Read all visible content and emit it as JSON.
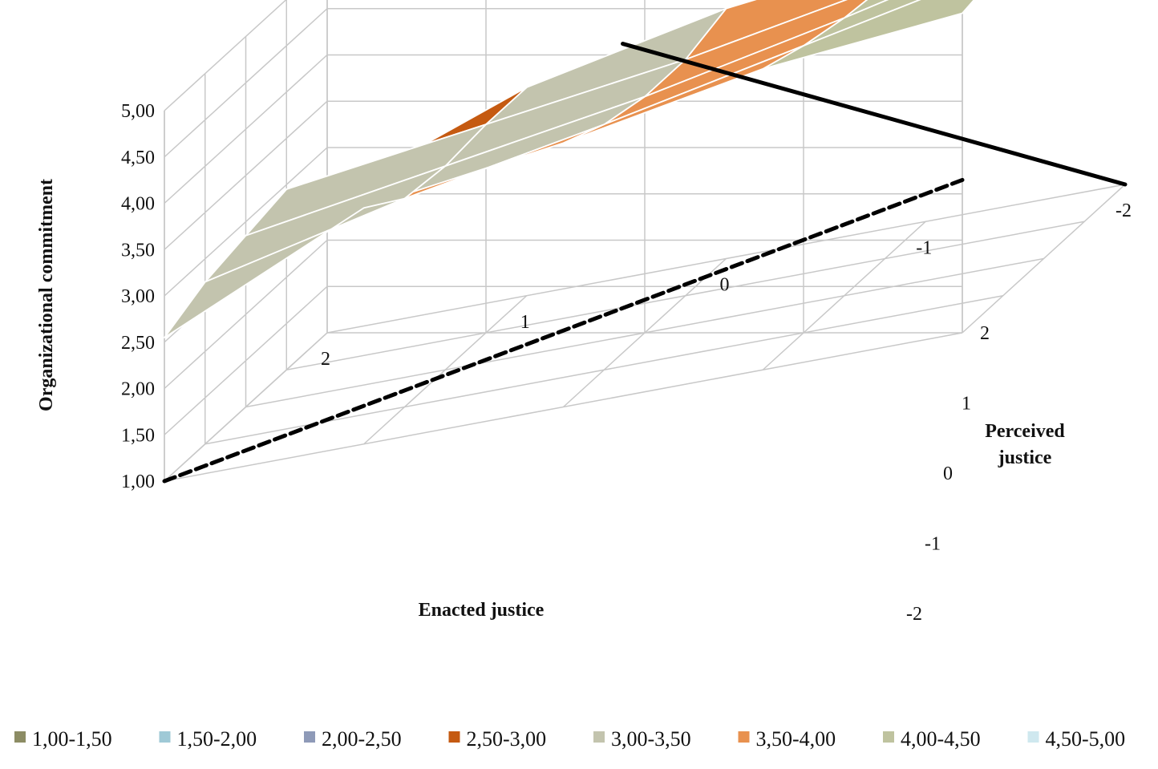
{
  "chart_data": {
    "type": "surface",
    "x_axis": {
      "label": "Enacted justice",
      "ticks": [
        "2",
        "1",
        "0",
        "-1",
        "-2"
      ],
      "values": [
        2,
        1,
        0,
        -1,
        -2
      ]
    },
    "y_axis": {
      "label_lines": [
        "Perceived",
        "justice"
      ],
      "ticks": [
        "2",
        "1",
        "0",
        "-1",
        "-2"
      ],
      "values": [
        2,
        1,
        0,
        -1,
        -2
      ]
    },
    "z_axis": {
      "label": "Organizational commitment",
      "ticks": [
        "1,00",
        "1,50",
        "2,00",
        "2,50",
        "3,00",
        "3,50",
        "4,00",
        "4,50",
        "5,00"
      ],
      "range": [
        1,
        5
      ]
    },
    "surface_z": [
      [
        2.55,
        3.55,
        3.85,
        4.25,
        4.45
      ],
      [
        2.75,
        3.25,
        3.65,
        4.1,
        4.55
      ],
      [
        2.85,
        3.2,
        3.55,
        4.0,
        4.5
      ],
      [
        2.95,
        3.25,
        3.55,
        3.95,
        4.35
      ],
      [
        2.45,
        3.25,
        3.7,
        3.95,
        4.2
      ]
    ],
    "overlay_lines": [
      {
        "style": "solid",
        "from": {
          "enacted": 0.6,
          "perceived": -2.4,
          "z": 3.4
        },
        "to": {
          "enacted": -2,
          "perceived": -2,
          "z": 1.0
        }
      },
      {
        "style": "dashed",
        "from": {
          "enacted": 2,
          "perceived": 2,
          "z": 1.0
        },
        "to": {
          "enacted": -2,
          "perceived": 2,
          "z": 2.65
        }
      }
    ],
    "legend": [
      {
        "label": "1,00-1,50",
        "color": "#8c8c64"
      },
      {
        "label": "1,50-2,00",
        "color": "#9fc9d6"
      },
      {
        "label": "2,00-2,50",
        "color": "#8e9ab8"
      },
      {
        "label": "2,50-3,00",
        "color": "#c55a11"
      },
      {
        "label": "3,00-3,50",
        "color": "#c3c4ae"
      },
      {
        "label": "3,50-4,00",
        "color": "#e8914f"
      },
      {
        "label": "4,00-4,50",
        "color": "#bfc39f"
      },
      {
        "label": "4,50-5,00",
        "color": "#cfe8ef"
      }
    ],
    "legend_placement": "bottom",
    "grid": true
  }
}
